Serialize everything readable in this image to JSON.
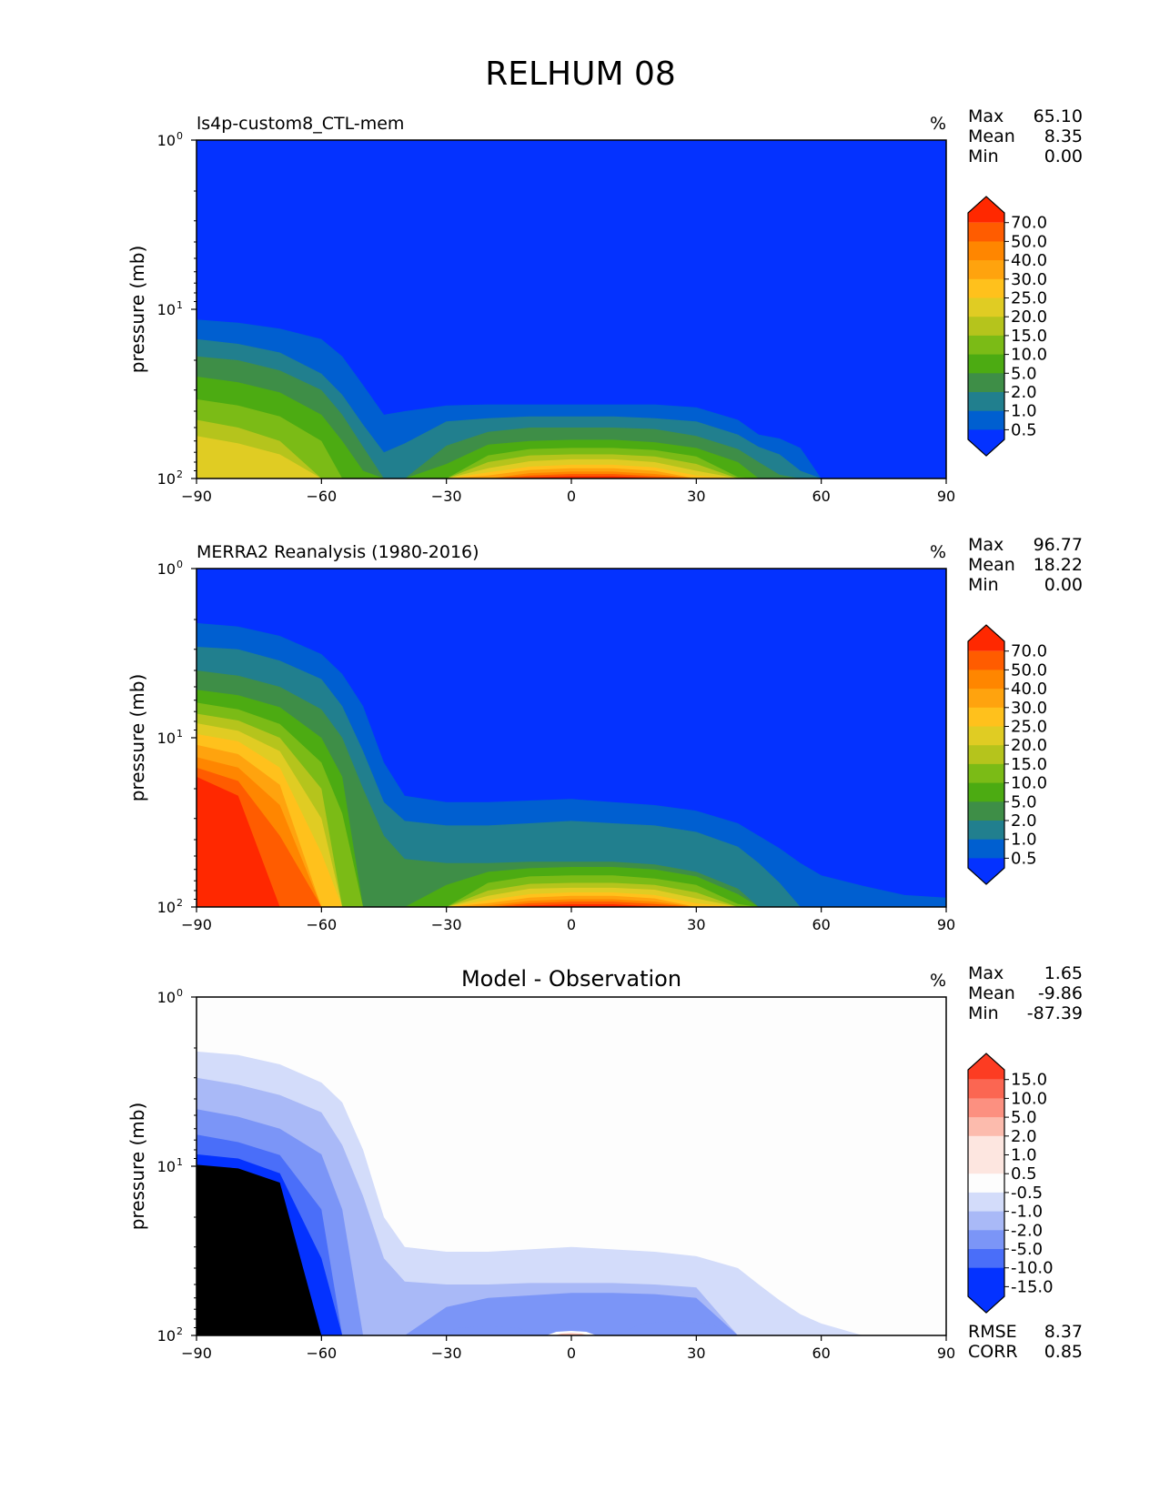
{
  "figure": {
    "title": "RELHUM 08"
  },
  "colors": {
    "abs_levels": [
      "#0432ff",
      "#005fd0",
      "#217f8e",
      "#3e8e47",
      "#4cab12",
      "#7bbb16",
      "#b5c41c",
      "#e0cc23",
      "#ffc11c",
      "#ffa30e",
      "#ff8600",
      "#ff5c00",
      "#ff2800"
    ],
    "diff_levels": [
      "#0432ff",
      "#4a6ef9",
      "#7b95f7",
      "#a9b9f7",
      "#d3dcfa",
      "#fdfdfd",
      "#fde6e0",
      "#fcbbad",
      "#fc9080",
      "#fb6652",
      "#fd3c22"
    ],
    "abs_frame": "#000000"
  },
  "chart_data": [
    {
      "type": "contourf",
      "panel_title": "ls4p-custom8_CTL-mem",
      "units": "%",
      "xlabel": "",
      "ylabel": "pressure (mb)",
      "xlim": [
        -90,
        90
      ],
      "ylim": [
        1,
        100
      ],
      "yscale": "log",
      "xticks": [
        "−90",
        "−60",
        "−30",
        "0",
        "30",
        "60",
        "90"
      ],
      "yticks": [
        "10",
        "10",
        "10"
      ],
      "ytick_exp": [
        "0",
        "1",
        "2"
      ],
      "stats": {
        "labels": [
          "Max",
          "Mean",
          "Min"
        ],
        "values": [
          "65.10",
          "8.35",
          "0.00"
        ]
      },
      "colorbar_ticks": [
        "70.0",
        "50.0",
        "40.0",
        "30.0",
        "25.0",
        "20.0",
        "15.0",
        "10.0",
        "5.0",
        "2.0",
        "1.0",
        "0.5"
      ],
      "contour_levels_pressure_at_lat": {
        "lat": [
          -90,
          -80,
          -70,
          -60,
          -55,
          -50,
          -45,
          -40,
          -30,
          -20,
          -10,
          0,
          10,
          20,
          30,
          40,
          45,
          50,
          55,
          60,
          70,
          90
        ],
        "level_0.5": [
          12,
          13,
          15,
          19,
          24,
          31,
          41,
          40,
          37,
          37,
          37,
          37,
          37,
          37,
          37,
          41,
          45,
          55,
          70,
          100,
          100,
          100
        ],
        "level_1": [
          15,
          16,
          18,
          24,
          32,
          48,
          68,
          62,
          45,
          44,
          44,
          44,
          44,
          44,
          46,
          52,
          62,
          75,
          90,
          100,
          100,
          100
        ],
        "level_2": [
          18,
          20,
          23,
          30,
          42,
          65,
          100,
          100,
          62,
          52,
          50,
          50,
          50,
          50,
          55,
          65,
          75,
          95,
          100,
          100,
          100,
          100
        ],
        "level_5": [
          24,
          26,
          30,
          42,
          60,
          90,
          100,
          100,
          80,
          62,
          60,
          60,
          60,
          60,
          65,
          78,
          90,
          100,
          100,
          100,
          100,
          100
        ],
        "level_10": [
          33,
          36,
          42,
          60,
          100,
          100,
          100,
          100,
          100,
          72,
          66,
          66,
          66,
          66,
          72,
          95,
          100,
          100,
          100,
          100,
          100,
          100
        ],
        "level_20": [
          58,
          62,
          70,
          100,
          100,
          100,
          100,
          100,
          100,
          90,
          80,
          78,
          78,
          80,
          92,
          100,
          100,
          100,
          100,
          100,
          100,
          100
        ],
        "level_50": [
          100,
          100,
          100,
          100,
          100,
          100,
          100,
          100,
          100,
          100,
          92,
          88,
          88,
          92,
          100,
          100,
          100,
          100,
          100,
          100,
          100,
          100
        ]
      }
    },
    {
      "type": "contourf",
      "panel_title": "MERRA2 Reanalysis (1980-2016)",
      "units": "%",
      "xlabel": "",
      "ylabel": "pressure (mb)",
      "xlim": [
        -90,
        90
      ],
      "ylim": [
        1,
        100
      ],
      "yscale": "log",
      "xticks": [
        "−90",
        "−60",
        "−30",
        "0",
        "30",
        "60",
        "90"
      ],
      "yticks": [
        "10",
        "10",
        "10"
      ],
      "ytick_exp": [
        "0",
        "1",
        "2"
      ],
      "stats": {
        "labels": [
          "Max",
          "Mean",
          "Min"
        ],
        "values": [
          "96.77",
          "18.22",
          "0.00"
        ]
      },
      "colorbar_ticks": [
        "70.0",
        "50.0",
        "40.0",
        "30.0",
        "25.0",
        "20.0",
        "15.0",
        "10.0",
        "5.0",
        "2.0",
        "1.0",
        "0.5"
      ]
    },
    {
      "type": "contourf",
      "panel_title": "Model - Observation",
      "units": "%",
      "xlabel": "",
      "ylabel": "pressure (mb)",
      "xlim": [
        -90,
        90
      ],
      "ylim": [
        1,
        100
      ],
      "yscale": "log",
      "xticks": [
        "−90",
        "−60",
        "−30",
        "0",
        "30",
        "60",
        "90"
      ],
      "yticks": [
        "10",
        "10",
        "10"
      ],
      "ytick_exp": [
        "0",
        "1",
        "2"
      ],
      "stats": {
        "labels": [
          "Max",
          "Mean",
          "Min"
        ],
        "values": [
          "1.65",
          "-9.86",
          "-87.39"
        ]
      },
      "colorbar_ticks": [
        "15.0",
        "10.0",
        "5.0",
        "2.0",
        "1.0",
        "0.5",
        "-0.5",
        "-1.0",
        "-2.0",
        "-5.0",
        "-10.0",
        "-15.0"
      ],
      "metrics": {
        "labels": [
          "RMSE",
          "CORR"
        ],
        "values": [
          "8.37",
          "0.85"
        ]
      }
    }
  ]
}
